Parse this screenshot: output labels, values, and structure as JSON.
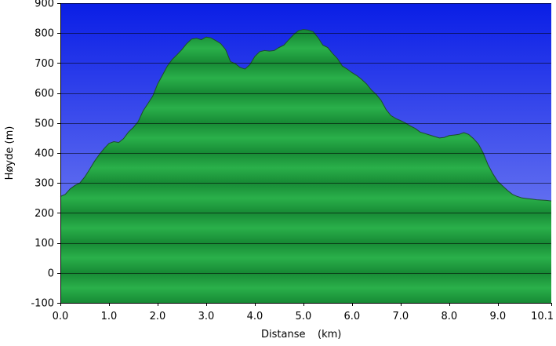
{
  "chart_data": {
    "type": "area",
    "xlabel": "Distanse",
    "xlabel_unit": "(km)",
    "ylabel": "Høyde (m)",
    "xlim": [
      0,
      10.1
    ],
    "ylim": [
      -100,
      900
    ],
    "x_ticks": [
      0,
      1,
      2,
      3,
      4,
      5,
      6,
      7,
      8,
      9,
      10.1
    ],
    "x_tick_labels": [
      "0.0",
      "1.0",
      "2.0",
      "3.0",
      "4.0",
      "5.0",
      "6.0",
      "7.0",
      "8.0",
      "9.0",
      "10.1"
    ],
    "y_ticks": [
      -100,
      0,
      100,
      200,
      300,
      400,
      500,
      600,
      700,
      800,
      900
    ],
    "y_tick_labels": [
      "-100",
      "0",
      "100",
      "200",
      "300",
      "400",
      "500",
      "600",
      "700",
      "800",
      "900"
    ],
    "grid": true,
    "colors": {
      "sky_top": "#0a1ee6",
      "sky_bottom": "#8c96f5",
      "fill_light": "#2ab04a",
      "fill_dark": "#178a35",
      "outline": "#1d4d2a"
    },
    "series": [
      {
        "x": [
          0.0,
          0.1,
          0.2,
          0.3,
          0.4,
          0.5,
          0.6,
          0.7,
          0.8,
          0.9,
          1.0,
          1.1,
          1.2,
          1.3,
          1.4,
          1.5,
          1.6,
          1.7,
          1.8,
          1.9,
          2.0,
          2.1,
          2.2,
          2.3,
          2.4,
          2.5,
          2.6,
          2.7,
          2.8,
          2.9,
          3.0,
          3.1,
          3.2,
          3.3,
          3.4,
          3.5,
          3.6,
          3.7,
          3.8,
          3.9,
          4.0,
          4.1,
          4.2,
          4.3,
          4.4,
          4.5,
          4.6,
          4.7,
          4.8,
          4.9,
          5.0,
          5.1,
          5.2,
          5.3,
          5.4,
          5.5,
          5.6,
          5.7,
          5.8,
          5.9,
          6.0,
          6.1,
          6.2,
          6.3,
          6.4,
          6.5,
          6.6,
          6.7,
          6.8,
          6.9,
          7.0,
          7.1,
          7.2,
          7.3,
          7.4,
          7.5,
          7.6,
          7.7,
          7.8,
          7.9,
          8.0,
          8.1,
          8.2,
          8.3,
          8.4,
          8.5,
          8.6,
          8.7,
          8.8,
          8.9,
          9.0,
          9.1,
          9.2,
          9.3,
          9.4,
          9.5,
          9.6,
          9.7,
          9.8,
          9.9,
          10.0,
          10.1
        ],
        "y": [
          255,
          262,
          280,
          292,
          300,
          320,
          345,
          372,
          395,
          415,
          432,
          438,
          435,
          448,
          470,
          485,
          505,
          540,
          565,
          590,
          630,
          660,
          690,
          712,
          728,
          745,
          765,
          780,
          783,
          778,
          787,
          784,
          775,
          765,
          745,
          705,
          698,
          685,
          680,
          695,
          722,
          738,
          742,
          740,
          742,
          752,
          760,
          778,
          795,
          808,
          812,
          810,
          805,
          785,
          760,
          752,
          732,
          715,
          690,
          680,
          668,
          658,
          645,
          630,
          610,
          595,
          575,
          545,
          525,
          515,
          508,
          500,
          490,
          482,
          470,
          465,
          460,
          455,
          450,
          452,
          458,
          460,
          462,
          468,
          462,
          448,
          430,
          400,
          360,
          330,
          305,
          290,
          275,
          262,
          255,
          250,
          248,
          246,
          244,
          243,
          242,
          240
        ]
      }
    ]
  }
}
